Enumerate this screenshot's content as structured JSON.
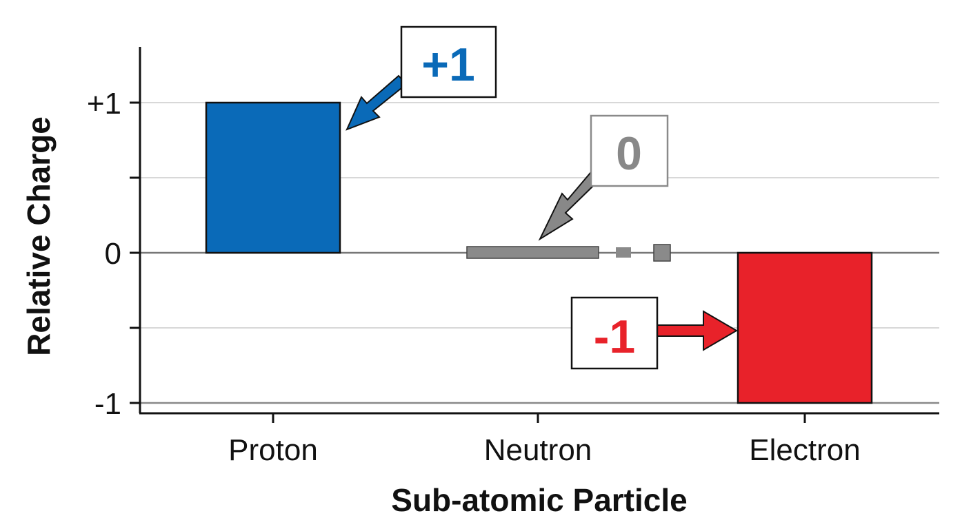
{
  "chart_data": {
    "type": "bar",
    "title": "",
    "xlabel": "Sub-atomic Particle",
    "ylabel": "Relative Charge",
    "categories": [
      "Proton",
      "Neutron",
      "Electron"
    ],
    "values": [
      1,
      0,
      -1
    ],
    "colors": [
      "#0a6ab8",
      "#8a8a8a",
      "#e8222a"
    ],
    "ylim": [
      -1.07,
      1.4
    ],
    "yticks": [
      {
        "value": 1,
        "label": "+1"
      },
      {
        "value": 0,
        "label": "0"
      },
      {
        "value": -1,
        "label": "-1"
      }
    ],
    "minor_ticks": [
      0.5,
      -0.5
    ],
    "grid": true,
    "annotations": [
      {
        "category": "Proton",
        "text": "+1",
        "color": "#0a6ab8"
      },
      {
        "category": "Neutron",
        "text": "0",
        "color": "#888888"
      },
      {
        "category": "Electron",
        "text": "-1",
        "color": "#e8222a"
      }
    ]
  }
}
